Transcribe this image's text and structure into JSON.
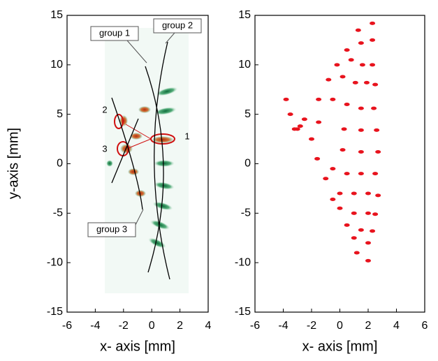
{
  "chart_data": [
    {
      "type": "image",
      "xlabel": "x- axis [mm]",
      "ylabel": "y-axis [mm]",
      "xlim": [
        -6,
        4
      ],
      "xticks": [
        -6,
        -4,
        -2,
        0,
        2,
        4
      ],
      "ylim": [
        -15,
        15
      ],
      "yticks": [
        -15,
        -10,
        -5,
        0,
        5,
        10,
        15
      ],
      "annotations": [
        "group 1",
        "group 2",
        "group 3",
        "1",
        "2",
        "3"
      ]
    },
    {
      "type": "scatter",
      "xlabel": "x- axis [mm]",
      "xlim": [
        -6,
        6
      ],
      "xticks": [
        -6,
        -4,
        -2,
        0,
        2,
        4,
        6
      ],
      "ylim": [
        -15,
        15
      ],
      "yticks": [
        -15,
        -10,
        -5,
        0,
        5,
        10,
        15
      ],
      "color": "#e8131d",
      "x": [
        1.3,
        2.3,
        0.5,
        1.5,
        2.3,
        -0.2,
        0.8,
        1.6,
        2.3,
        -0.8,
        0.2,
        1.1,
        1.9,
        2.5,
        -1.5,
        -0.5,
        0.5,
        1.5,
        2.4,
        -3.5,
        -2.5,
        -1.5,
        0.3,
        1.5,
        2.6,
        -3.0,
        -2.0,
        0.2,
        1.5,
        2.7,
        -1.6,
        -0.5,
        0.5,
        1.5,
        2.5,
        -1.0,
        0.0,
        1.0,
        2.0,
        2.7,
        -0.5,
        0.0,
        1.0,
        2.0,
        2.5,
        0.5,
        1.5,
        2.3,
        1.0,
        2.0,
        1.2,
        2.0,
        -3.8,
        -3.2,
        -2.8
      ],
      "values": [
        13.5,
        14.2,
        11.5,
        12.2,
        12.5,
        10.0,
        10.5,
        10.0,
        10.0,
        8.5,
        8.8,
        8.2,
        8.2,
        8.0,
        6.5,
        6.5,
        6.0,
        5.6,
        5.6,
        5.0,
        4.5,
        4.2,
        3.5,
        3.4,
        3.4,
        3.5,
        2.5,
        1.4,
        1.2,
        1.2,
        0.5,
        -0.5,
        -1.0,
        -1.0,
        -1.0,
        -1.5,
        -3.0,
        -3.0,
        -3.0,
        -3.2,
        -3.6,
        -4.5,
        -5.0,
        -5.0,
        -5.1,
        -6.2,
        -6.7,
        -6.8,
        -7.5,
        -8.0,
        -9.0,
        -9.8,
        6.5,
        3.5,
        3.8
      ]
    }
  ]
}
